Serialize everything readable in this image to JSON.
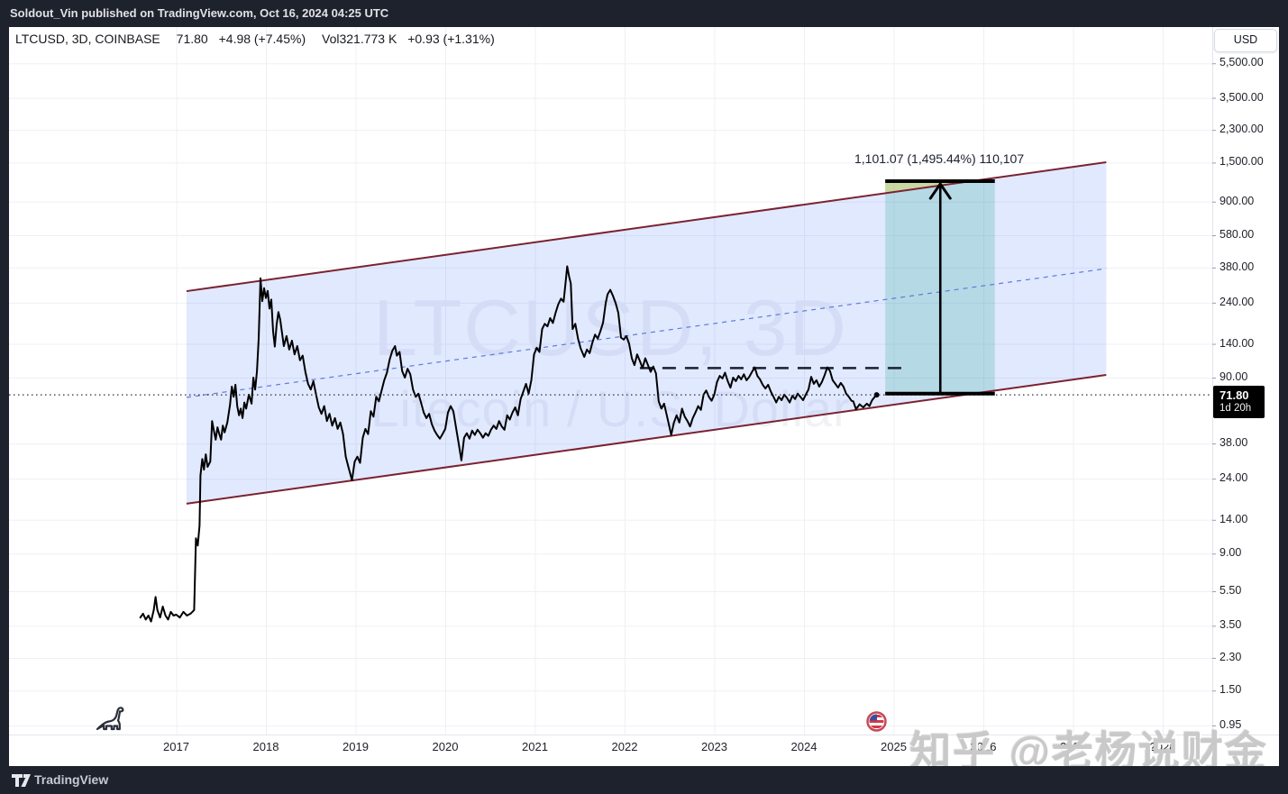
{
  "topbar": {
    "text": "Soldout_Vin published on TradingView.com, Oct 16, 2024 04:25 UTC"
  },
  "legend": {
    "symbol": "LTCUSD, 3D, COINBASE",
    "price": "71.80",
    "change": "+4.98 (+7.45%)",
    "volume_label": "Vol",
    "volume_value": "321.773 K",
    "volume_change": "+0.93 (+1.31%)"
  },
  "price_axis": {
    "currency": "USD",
    "last": {
      "price_label": "71.80",
      "countdown": "1d 20h",
      "value": 71.8
    },
    "ticks": [
      {
        "value": 5500,
        "label": "5,500.00"
      },
      {
        "value": 3500,
        "label": "3,500.00"
      },
      {
        "value": 2300,
        "label": "2,300.00"
      },
      {
        "value": 1500,
        "label": "1,500.00"
      },
      {
        "value": 900,
        "label": "900.00"
      },
      {
        "value": 580,
        "label": "580.00"
      },
      {
        "value": 380,
        "label": "380.00"
      },
      {
        "value": 240,
        "label": "240.00"
      },
      {
        "value": 140,
        "label": "140.00"
      },
      {
        "value": 90,
        "label": "90.00"
      },
      {
        "value": 38,
        "label": "38.00"
      },
      {
        "value": 24,
        "label": "24.00"
      },
      {
        "value": 14,
        "label": "14.00"
      },
      {
        "value": 9,
        "label": "9.00"
      },
      {
        "value": 5.5,
        "label": "5.50"
      },
      {
        "value": 3.5,
        "label": "3.50"
      },
      {
        "value": 2.3,
        "label": "2.30"
      },
      {
        "value": 1.5,
        "label": "1.50"
      },
      {
        "value": 0.95,
        "label": "0.95"
      }
    ]
  },
  "time_axis": {
    "years": [
      "2017",
      "2018",
      "2019",
      "2020",
      "2021",
      "2022",
      "2023",
      "2024",
      "2025",
      "2026",
      "2027",
      "2028"
    ]
  },
  "watermarks": {
    "symbol_large": "LTCUSD, 3D",
    "name_large": "Litecoin / U.S. Dollar",
    "zhihu": "知乎 @老杨说财金"
  },
  "brand": {
    "logo_text": "TradingView"
  },
  "drawings": {
    "channel": {
      "t_start": 2017.115,
      "t_end": 2027.37,
      "price_top_start": 279,
      "price_top_end": 1507,
      "price_bottom_start": 17.3,
      "price_bottom_end": 93.2,
      "fill": "rgba(41,98,255,0.14)",
      "border_color": "#7b2230",
      "mid_color": "#5f7adb"
    },
    "projection": {
      "t_start": 2024.906,
      "t_end": 2026.128,
      "price_low": 73.0,
      "price_high": 1176,
      "arrow_t": 2025.52,
      "label": "1,101.07 (1,495.44%) 110,107",
      "fill": "rgba(8,153,129,0.20)",
      "sliver_fill": "rgba(196,190,80,0.45)",
      "line_color": "#000000"
    },
    "resistance": {
      "t_start": 2022.17,
      "t_end": 2025.16,
      "price": 102,
      "color": "#1c2030"
    },
    "last_price_line": {
      "price": 71.8,
      "color": "#2a2e39"
    }
  },
  "chart_data": {
    "type": "line",
    "title": "LTCUSD, 3D, COINBASE — Litecoin / U.S. Dollar",
    "x_unit": "decimal_year",
    "y_scale": "log",
    "xlim": [
      2016.14,
      2028.56
    ],
    "ylim": [
      0.8,
      7000
    ],
    "x_ticks": [
      2017,
      2018,
      2019,
      2020,
      2021,
      2022,
      2023,
      2024,
      2025,
      2026,
      2027,
      2028
    ],
    "y_ticks": [
      5500,
      3500,
      2300,
      1500,
      900,
      580,
      380,
      240,
      140,
      90,
      38,
      24,
      14,
      9,
      5.5,
      3.5,
      2.3,
      1.5,
      0.95
    ],
    "grid": true,
    "line_color": "#000000",
    "series": [
      [
        2016.6,
        3.9
      ],
      [
        2016.63,
        4.1
      ],
      [
        2016.66,
        3.8
      ],
      [
        2016.69,
        4.0
      ],
      [
        2016.72,
        3.7
      ],
      [
        2016.75,
        4.3
      ],
      [
        2016.77,
        5.1
      ],
      [
        2016.79,
        4.3
      ],
      [
        2016.82,
        3.9
      ],
      [
        2016.85,
        4.5
      ],
      [
        2016.88,
        4.0
      ],
      [
        2016.91,
        3.8
      ],
      [
        2016.94,
        4.2
      ],
      [
        2016.97,
        4.0
      ],
      [
        2017.0,
        4.05
      ],
      [
        2017.04,
        3.9
      ],
      [
        2017.08,
        4.2
      ],
      [
        2017.12,
        4.0
      ],
      [
        2017.16,
        4.1
      ],
      [
        2017.2,
        4.3
      ],
      [
        2017.22,
        11
      ],
      [
        2017.24,
        10
      ],
      [
        2017.26,
        13
      ],
      [
        2017.27,
        25
      ],
      [
        2017.29,
        31
      ],
      [
        2017.31,
        27
      ],
      [
        2017.33,
        33
      ],
      [
        2017.35,
        28
      ],
      [
        2017.38,
        30
      ],
      [
        2017.4,
        51
      ],
      [
        2017.42,
        45
      ],
      [
        2017.44,
        40
      ],
      [
        2017.46,
        47
      ],
      [
        2017.48,
        43
      ],
      [
        2017.5,
        40
      ],
      [
        2017.52,
        48
      ],
      [
        2017.54,
        44
      ],
      [
        2017.57,
        50
      ],
      [
        2017.6,
        63
      ],
      [
        2017.62,
        80
      ],
      [
        2017.64,
        70
      ],
      [
        2017.66,
        82
      ],
      [
        2017.68,
        62
      ],
      [
        2017.7,
        55
      ],
      [
        2017.72,
        60
      ],
      [
        2017.74,
        53
      ],
      [
        2017.76,
        65
      ],
      [
        2017.78,
        60
      ],
      [
        2017.81,
        72
      ],
      [
        2017.84,
        64
      ],
      [
        2017.86,
        90
      ],
      [
        2017.88,
        77
      ],
      [
        2017.9,
        98
      ],
      [
        2017.92,
        150
      ],
      [
        2017.94,
        330
      ],
      [
        2017.96,
        245
      ],
      [
        2017.98,
        290
      ],
      [
        2018.0,
        255
      ],
      [
        2018.02,
        280
      ],
      [
        2018.04,
        222
      ],
      [
        2018.06,
        250
      ],
      [
        2018.08,
        165
      ],
      [
        2018.1,
        135
      ],
      [
        2018.12,
        180
      ],
      [
        2018.14,
        212
      ],
      [
        2018.16,
        192
      ],
      [
        2018.18,
        162
      ],
      [
        2018.2,
        136
      ],
      [
        2018.23,
        155
      ],
      [
        2018.26,
        130
      ],
      [
        2018.29,
        146
      ],
      [
        2018.32,
        122
      ],
      [
        2018.35,
        136
      ],
      [
        2018.38,
        113
      ],
      [
        2018.41,
        120
      ],
      [
        2018.44,
        97
      ],
      [
        2018.47,
        83
      ],
      [
        2018.5,
        77
      ],
      [
        2018.53,
        86
      ],
      [
        2018.56,
        72
      ],
      [
        2018.59,
        61
      ],
      [
        2018.62,
        56
      ],
      [
        2018.65,
        62
      ],
      [
        2018.68,
        51
      ],
      [
        2018.71,
        56
      ],
      [
        2018.74,
        48
      ],
      [
        2018.77,
        53
      ],
      [
        2018.8,
        46
      ],
      [
        2018.83,
        50
      ],
      [
        2018.86,
        43
      ],
      [
        2018.89,
        32
      ],
      [
        2018.92,
        28
      ],
      [
        2018.96,
        23.5
      ],
      [
        2018.99,
        30
      ],
      [
        2019.02,
        32
      ],
      [
        2019.05,
        29.5
      ],
      [
        2019.08,
        41
      ],
      [
        2019.11,
        46
      ],
      [
        2019.14,
        43
      ],
      [
        2019.17,
        58
      ],
      [
        2019.2,
        54
      ],
      [
        2019.23,
        70
      ],
      [
        2019.26,
        66
      ],
      [
        2019.29,
        76
      ],
      [
        2019.32,
        87
      ],
      [
        2019.35,
        96
      ],
      [
        2019.38,
        114
      ],
      [
        2019.41,
        128
      ],
      [
        2019.44,
        136
      ],
      [
        2019.46,
        120
      ],
      [
        2019.49,
        126
      ],
      [
        2019.52,
        98
      ],
      [
        2019.55,
        90
      ],
      [
        2019.58,
        101
      ],
      [
        2019.61,
        94
      ],
      [
        2019.64,
        77
      ],
      [
        2019.67,
        70
      ],
      [
        2019.7,
        73
      ],
      [
        2019.73,
        65
      ],
      [
        2019.76,
        57
      ],
      [
        2019.79,
        53
      ],
      [
        2019.82,
        56
      ],
      [
        2019.85,
        49
      ],
      [
        2019.88,
        45
      ],
      [
        2019.91,
        42.5
      ],
      [
        2019.94,
        40.5
      ],
      [
        2019.97,
        43
      ],
      [
        2020.0,
        46
      ],
      [
        2020.03,
        57
      ],
      [
        2020.06,
        62
      ],
      [
        2020.09,
        58
      ],
      [
        2020.12,
        47
      ],
      [
        2020.15,
        38
      ],
      [
        2020.18,
        30.5
      ],
      [
        2020.21,
        41
      ],
      [
        2020.24,
        43.5
      ],
      [
        2020.27,
        40.5
      ],
      [
        2020.3,
        45
      ],
      [
        2020.33,
        42.5
      ],
      [
        2020.36,
        45.5
      ],
      [
        2020.39,
        43.5
      ],
      [
        2020.42,
        41
      ],
      [
        2020.45,
        43.5
      ],
      [
        2020.48,
        42
      ],
      [
        2020.51,
        45.5
      ],
      [
        2020.54,
        48
      ],
      [
        2020.57,
        46
      ],
      [
        2020.6,
        51
      ],
      [
        2020.63,
        47.5
      ],
      [
        2020.66,
        45.5
      ],
      [
        2020.69,
        55
      ],
      [
        2020.72,
        52
      ],
      [
        2020.75,
        57
      ],
      [
        2020.78,
        61
      ],
      [
        2020.81,
        55
      ],
      [
        2020.84,
        68
      ],
      [
        2020.87,
        75
      ],
      [
        2020.9,
        83
      ],
      [
        2020.93,
        73
      ],
      [
        2020.96,
        87
      ],
      [
        2020.99,
        122
      ],
      [
        2021.02,
        133
      ],
      [
        2021.05,
        126
      ],
      [
        2021.08,
        170
      ],
      [
        2021.11,
        182
      ],
      [
        2021.14,
        176
      ],
      [
        2021.17,
        196
      ],
      [
        2021.2,
        184
      ],
      [
        2021.23,
        210
      ],
      [
        2021.26,
        235
      ],
      [
        2021.29,
        253
      ],
      [
        2021.32,
        243
      ],
      [
        2021.34,
        305
      ],
      [
        2021.36,
        386
      ],
      [
        2021.38,
        340
      ],
      [
        2021.4,
        308
      ],
      [
        2021.42,
        170
      ],
      [
        2021.45,
        182
      ],
      [
        2021.48,
        150
      ],
      [
        2021.51,
        132
      ],
      [
        2021.55,
        118
      ],
      [
        2021.58,
        130
      ],
      [
        2021.61,
        124
      ],
      [
        2021.64,
        142
      ],
      [
        2021.67,
        158
      ],
      [
        2021.7,
        150
      ],
      [
        2021.73,
        165
      ],
      [
        2021.76,
        185
      ],
      [
        2021.79,
        240
      ],
      [
        2021.81,
        268
      ],
      [
        2021.84,
        284
      ],
      [
        2021.87,
        262
      ],
      [
        2021.9,
        238
      ],
      [
        2021.93,
        210
      ],
      [
        2021.96,
        152
      ],
      [
        2021.99,
        148
      ],
      [
        2022.02,
        155
      ],
      [
        2022.05,
        140
      ],
      [
        2022.08,
        116
      ],
      [
        2022.11,
        106
      ],
      [
        2022.14,
        122
      ],
      [
        2022.17,
        112
      ],
      [
        2022.2,
        102
      ],
      [
        2022.23,
        116
      ],
      [
        2022.26,
        106
      ],
      [
        2022.29,
        97
      ],
      [
        2022.32,
        104
      ],
      [
        2022.35,
        95
      ],
      [
        2022.38,
        66
      ],
      [
        2022.41,
        60
      ],
      [
        2022.44,
        64
      ],
      [
        2022.47,
        55
      ],
      [
        2022.5,
        47
      ],
      [
        2022.52,
        42.5
      ],
      [
        2022.55,
        50
      ],
      [
        2022.58,
        55
      ],
      [
        2022.61,
        50
      ],
      [
        2022.64,
        60
      ],
      [
        2022.67,
        54
      ],
      [
        2022.7,
        51
      ],
      [
        2022.73,
        47.5
      ],
      [
        2022.76,
        53
      ],
      [
        2022.79,
        57
      ],
      [
        2022.82,
        62
      ],
      [
        2022.85,
        59
      ],
      [
        2022.88,
        72
      ],
      [
        2022.91,
        76
      ],
      [
        2022.94,
        70
      ],
      [
        2022.97,
        66.5
      ],
      [
        2023.0,
        72
      ],
      [
        2023.03,
        85
      ],
      [
        2023.06,
        92
      ],
      [
        2023.09,
        89
      ],
      [
        2023.12,
        96
      ],
      [
        2023.15,
        86
      ],
      [
        2023.18,
        79
      ],
      [
        2023.21,
        90
      ],
      [
        2023.24,
        86
      ],
      [
        2023.27,
        92
      ],
      [
        2023.3,
        88
      ],
      [
        2023.33,
        94
      ],
      [
        2023.36,
        87
      ],
      [
        2023.39,
        91
      ],
      [
        2023.42,
        97
      ],
      [
        2023.45,
        103
      ],
      [
        2023.48,
        92
      ],
      [
        2023.51,
        88
      ],
      [
        2023.54,
        82
      ],
      [
        2023.57,
        78
      ],
      [
        2023.6,
        82
      ],
      [
        2023.63,
        75
      ],
      [
        2023.66,
        70
      ],
      [
        2023.69,
        65
      ],
      [
        2023.72,
        70
      ],
      [
        2023.75,
        67
      ],
      [
        2023.78,
        72
      ],
      [
        2023.81,
        69
      ],
      [
        2023.84,
        65
      ],
      [
        2023.87,
        71
      ],
      [
        2023.9,
        68
      ],
      [
        2023.93,
        73
      ],
      [
        2023.96,
        70
      ],
      [
        2023.99,
        67
      ],
      [
        2024.02,
        72
      ],
      [
        2024.05,
        77
      ],
      [
        2024.08,
        91
      ],
      [
        2024.11,
        83
      ],
      [
        2024.14,
        87
      ],
      [
        2024.17,
        80
      ],
      [
        2024.2,
        85
      ],
      [
        2024.23,
        93
      ],
      [
        2024.26,
        103
      ],
      [
        2024.29,
        98
      ],
      [
        2024.32,
        87
      ],
      [
        2024.35,
        83
      ],
      [
        2024.38,
        79
      ],
      [
        2024.41,
        84
      ],
      [
        2024.44,
        80
      ],
      [
        2024.47,
        73
      ],
      [
        2024.5,
        70
      ],
      [
        2024.53,
        66.5
      ],
      [
        2024.55,
        66
      ],
      [
        2024.58,
        59.5
      ],
      [
        2024.62,
        63.5
      ],
      [
        2024.66,
        61
      ],
      [
        2024.7,
        64
      ],
      [
        2024.73,
        62
      ],
      [
        2024.76,
        67
      ],
      [
        2024.79,
        70
      ],
      [
        2024.81,
        71.8
      ]
    ]
  },
  "colors": {
    "frame_bg": "#1e222d",
    "card_bg": "#ffffff",
    "grid": "#eef0f4",
    "axis_border": "#e2e5ec",
    "axis_text": "#20222a",
    "badge_bg": "#000000"
  }
}
